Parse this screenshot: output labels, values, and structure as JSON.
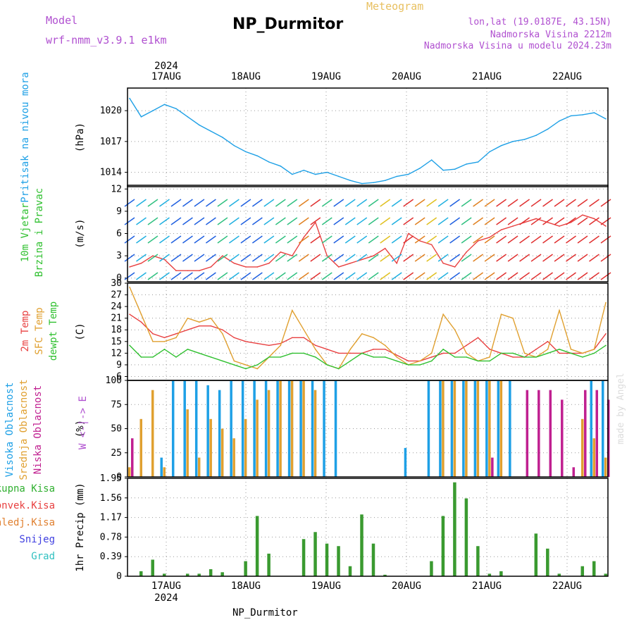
{
  "header": {
    "title": "NP_Durmitor",
    "subtitle": "Meteogram",
    "model_label": "Model",
    "model_value": "wrf-nmm_v3.9.1 e1km",
    "location": "lon,lat (19.0187E, 43.15N)",
    "altitude": "Nadmorska Visina 2212m",
    "model_altitude": "Nadmorska Visina u modelu 2024.23m",
    "footer": "NP_Durmitor",
    "watermark": "made by Angel"
  },
  "colors": {
    "pressure": "#1ea0e6",
    "t2m": "#e84040",
    "tsfc": "#e0a030",
    "dewpt": "#30c030",
    "high": "#1ea0e6",
    "mid": "#e0a030",
    "low": "#c02090",
    "precip": "#3a9a30",
    "precip2": "#c84040",
    "frame": "#000",
    "grid": "#888"
  },
  "chart_data": [
    {
      "type": "line",
      "title": "Pritisak na nivou mora",
      "ylabel": "(hPa)",
      "year": "2024",
      "x_ticks": [
        "17AUG",
        "18AUG",
        "19AUG",
        "20AUG",
        "21AUG",
        "22AUG"
      ],
      "yticks": [
        1014,
        1017,
        1020
      ],
      "ylim": [
        1012.6,
        1022.2
      ],
      "series": [
        {
          "name": "Pritisak na nivou mora",
          "color": "#1ea0e6",
          "values": [
            1021.2,
            1019.4,
            1020.0,
            1020.6,
            1020.2,
            1019.4,
            1018.6,
            1018.0,
            1017.4,
            1016.6,
            1016.0,
            1015.6,
            1015.0,
            1014.6,
            1013.8,
            1014.2,
            1013.8,
            1014.0,
            1013.6,
            1013.2,
            1012.9,
            1013.0,
            1013.2,
            1013.6,
            1013.8,
            1014.4,
            1015.2,
            1014.2,
            1014.3,
            1014.8,
            1015.0,
            1016.0,
            1016.6,
            1017.0,
            1017.2,
            1017.6,
            1018.2,
            1019.0,
            1019.5,
            1019.6,
            1019.8,
            1019.2
          ]
        }
      ],
      "grid": true
    },
    {
      "type": "line",
      "title": "10m Vjetar Brzina i Pravac",
      "ylabel": "(m/s)",
      "compass": "W <-|-> E",
      "yticks": [
        0,
        3,
        6,
        9,
        12
      ],
      "ylim": [
        -0.5,
        12.5
      ],
      "series": [
        {
          "name": "10m Vjetar",
          "color": "#e84040",
          "values": [
            1.5,
            2.0,
            3.0,
            2.5,
            1.0,
            1.0,
            1.0,
            1.5,
            3.0,
            2.0,
            1.5,
            1.5,
            2.0,
            3.5,
            3.0,
            5.5,
            7.5,
            3.0,
            1.5,
            2.0,
            2.5,
            3.0,
            4.0,
            2.0,
            6.0,
            5.0,
            4.5,
            2.0,
            1.5,
            3.5,
            5.0,
            5.5,
            6.5,
            7.0,
            7.5,
            8.0,
            7.5,
            7.0,
            7.5,
            8.5,
            8.0,
            7.0
          ]
        }
      ],
      "grid": true
    },
    {
      "type": "line",
      "title": "2m Temp / SFC Temp / dewpt Temp",
      "ylabel": "(C)",
      "yticks": [
        6,
        9,
        12,
        15,
        18,
        21,
        24,
        27,
        30
      ],
      "ylim": [
        5,
        30
      ],
      "series": [
        {
          "name": "2m Temp",
          "color": "#e84040",
          "values": [
            22,
            20,
            17,
            16,
            17,
            18,
            19,
            19,
            18,
            16,
            15,
            14.5,
            14,
            14.5,
            16,
            16,
            14,
            13,
            12,
            12,
            12,
            13,
            13,
            11.5,
            10,
            10,
            11,
            12,
            12,
            14,
            16,
            13,
            12,
            11,
            11,
            13,
            15,
            12,
            12,
            12,
            13,
            17
          ]
        },
        {
          "name": "SFC Temp",
          "color": "#e0a030",
          "values": [
            29,
            22,
            15,
            15,
            16,
            21,
            20,
            21,
            17,
            10,
            9,
            8,
            11,
            14,
            23,
            18,
            13,
            9,
            8,
            13,
            17,
            16,
            14,
            11,
            9,
            10,
            12,
            22,
            18,
            12,
            10,
            11,
            22,
            21,
            12,
            11,
            13,
            23,
            13,
            12,
            13,
            25
          ]
        },
        {
          "name": "dewpt Temp",
          "color": "#30c030",
          "values": [
            14,
            11,
            11,
            13,
            11,
            13,
            12,
            11,
            10,
            9,
            8,
            9,
            11,
            11,
            12,
            12,
            11,
            9,
            8,
            10,
            12,
            11,
            11,
            10,
            9,
            9,
            10,
            13,
            11,
            11,
            10,
            10,
            12,
            12,
            11,
            11,
            12,
            13,
            12,
            11,
            12,
            14
          ]
        }
      ],
      "grid": true
    },
    {
      "type": "bar",
      "title": "Visoka Oblacnost / Srednja Oblacnost / Niska Oblacnost",
      "ylabel": "(%)",
      "yticks": [
        0,
        25,
        50,
        75,
        100
      ],
      "ylim": [
        0,
        100
      ],
      "series": [
        {
          "name": "Visoka Oblacnost",
          "color": "#1ea0e6",
          "values": [
            0,
            0,
            0,
            20,
            100,
            100,
            100,
            95,
            90,
            100,
            100,
            100,
            100,
            100,
            100,
            100,
            100,
            100,
            100,
            0,
            0,
            0,
            0,
            0,
            30,
            0,
            100,
            100,
            100,
            100,
            100,
            100,
            100,
            100,
            0,
            0,
            0,
            0,
            0,
            0,
            100,
            100
          ]
        },
        {
          "name": "Srednja Oblacnost",
          "color": "#e0a030",
          "values": [
            10,
            60,
            90,
            10,
            0,
            70,
            20,
            60,
            50,
            40,
            60,
            80,
            90,
            100,
            100,
            100,
            90,
            0,
            0,
            0,
            0,
            0,
            0,
            0,
            0,
            0,
            0,
            100,
            100,
            100,
            100,
            100,
            100,
            0,
            0,
            0,
            0,
            0,
            0,
            60,
            40,
            20
          ]
        },
        {
          "name": "Niska Oblacnost",
          "color": "#c02090",
          "values": [
            40,
            0,
            0,
            0,
            0,
            0,
            0,
            0,
            0,
            0,
            0,
            0,
            0,
            0,
            0,
            0,
            0,
            0,
            0,
            0,
            0,
            0,
            0,
            0,
            0,
            0,
            0,
            0,
            0,
            0,
            0,
            20,
            0,
            0,
            90,
            90,
            90,
            80,
            10,
            90,
            90,
            80
          ]
        }
      ],
      "grid": true
    },
    {
      "type": "bar",
      "title": "1hr Precip",
      "ylabel": "1hr Precip (mm)",
      "legend": [
        "Ukupna Kisa",
        "Konvek.Kisa",
        "Zaledj.Kisa",
        "Snijeg",
        "Grad"
      ],
      "legend_colors": [
        "#30b030",
        "#e84040",
        "#e08030",
        "#4040e0",
        "#30c0c0"
      ],
      "yticks": [
        0,
        0.39,
        0.78,
        1.17,
        1.56,
        1.95
      ],
      "ylim": [
        0,
        1.95
      ],
      "series": [
        {
          "name": "Ukupna Kisa",
          "color": "#3a9a30",
          "values": [
            0,
            0.1,
            0.33,
            0.05,
            0,
            0.05,
            0.05,
            0.14,
            0.08,
            0.0,
            0.3,
            1.2,
            0.45,
            0.0,
            0.0,
            0.74,
            0.88,
            0.65,
            0.6,
            0.2,
            1.23,
            0.65,
            0.03,
            0.0,
            0.0,
            0.0,
            0.3,
            1.2,
            1.87,
            1.55,
            0.6,
            0.05,
            0.1,
            0.0,
            0.0,
            0.85,
            0.55,
            0.05,
            0.0,
            0.2,
            0.3,
            0.05
          ]
        }
      ],
      "grid": true
    }
  ]
}
